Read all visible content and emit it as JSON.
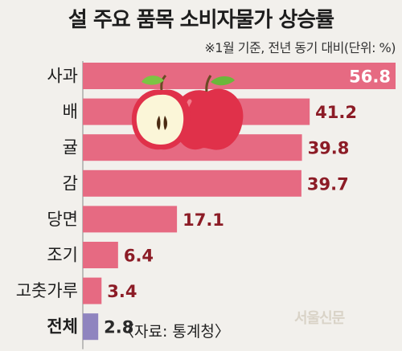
{
  "chart_data": {
    "type": "bar",
    "orientation": "horizontal",
    "title": "설 주요 품목 소비자물가 상승률",
    "subtitle": "※1월 기준, 전년 동기 대비(단위: %)",
    "categories": [
      "사과",
      "배",
      "귤",
      "감",
      "당면",
      "조기",
      "고춧가루",
      "전체"
    ],
    "values": [
      56.8,
      41.2,
      39.8,
      39.7,
      17.1,
      6.4,
      3.4,
      2.8
    ],
    "value_labels": [
      "56.8",
      "41.2",
      "39.8",
      "39.7",
      "17.1",
      "6.4",
      "3.4",
      "2.8"
    ],
    "xlim": [
      0,
      56.8
    ],
    "grid": false,
    "colors": {
      "bar": "#e66a82",
      "total_bar": "#8f84bf",
      "value_text": "#8c1c26"
    }
  },
  "footer": {
    "source": "〈자료: 통계청〉",
    "watermark": "서울신문"
  },
  "illustration": {
    "icon": "apple-icon"
  }
}
